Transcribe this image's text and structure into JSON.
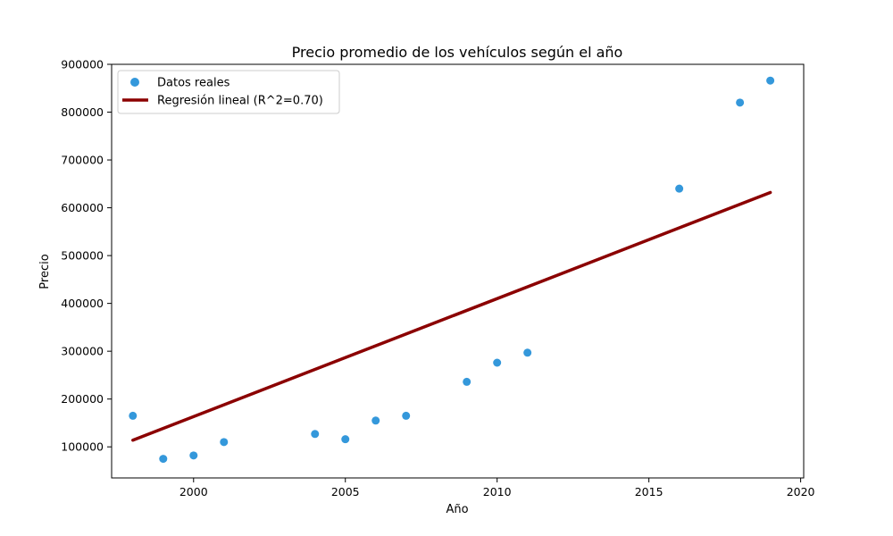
{
  "chart_data": {
    "type": "scatter",
    "title": "Precio promedio de los vehículos según el año",
    "xlabel": "Año",
    "ylabel": "Precio",
    "xlim": [
      1997.3,
      2020.1
    ],
    "ylim": [
      35000,
      900000
    ],
    "x_ticks": [
      2000,
      2005,
      2010,
      2015,
      2020
    ],
    "y_ticks": [
      100000,
      200000,
      300000,
      400000,
      500000,
      600000,
      700000,
      800000,
      900000
    ],
    "grid": false,
    "legend_position": "top-left",
    "series": [
      {
        "name": "Datos reales",
        "kind": "scatter",
        "color": "#3498db",
        "points": [
          {
            "x": 1998,
            "y": 165000
          },
          {
            "x": 1999,
            "y": 75000
          },
          {
            "x": 2000,
            "y": 82000
          },
          {
            "x": 2001,
            "y": 110000
          },
          {
            "x": 2004,
            "y": 127000
          },
          {
            "x": 2005,
            "y": 116000
          },
          {
            "x": 2006,
            "y": 155000
          },
          {
            "x": 2007,
            "y": 165000
          },
          {
            "x": 2009,
            "y": 236000
          },
          {
            "x": 2010,
            "y": 276000
          },
          {
            "x": 2011,
            "y": 297000
          },
          {
            "x": 2016,
            "y": 640000
          },
          {
            "x": 2018,
            "y": 820000
          },
          {
            "x": 2019,
            "y": 866000
          }
        ]
      },
      {
        "name": "Regresión lineal (R^2=0.70)",
        "kind": "line",
        "color": "#8b0000",
        "points": [
          {
            "x": 1998,
            "y": 114000
          },
          {
            "x": 2019,
            "y": 632000
          }
        ]
      }
    ]
  }
}
